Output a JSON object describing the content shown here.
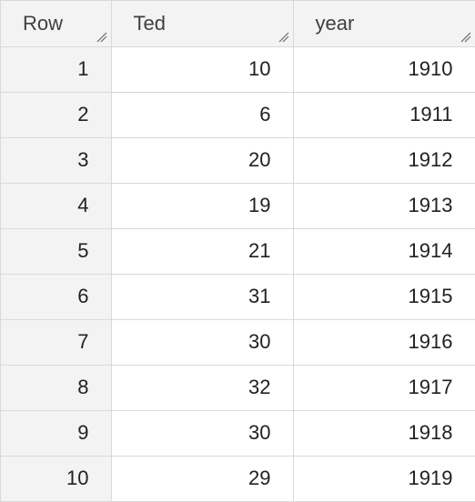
{
  "table": {
    "headers": {
      "row": "Row",
      "ted": "Ted",
      "year": "year"
    },
    "rows": [
      {
        "row": "1",
        "ted": "10",
        "year": "1910"
      },
      {
        "row": "2",
        "ted": "6",
        "year": "1911"
      },
      {
        "row": "3",
        "ted": "20",
        "year": "1912"
      },
      {
        "row": "4",
        "ted": "19",
        "year": "1913"
      },
      {
        "row": "5",
        "ted": "21",
        "year": "1914"
      },
      {
        "row": "6",
        "ted": "31",
        "year": "1915"
      },
      {
        "row": "7",
        "ted": "30",
        "year": "1916"
      },
      {
        "row": "8",
        "ted": "32",
        "year": "1917"
      },
      {
        "row": "9",
        "ted": "30",
        "year": "1918"
      },
      {
        "row": "10",
        "ted": "29",
        "year": "1919"
      }
    ]
  },
  "colors": {
    "header_bg": "#f3f3f3",
    "grid_line": "#d9d9d9",
    "text": "#202124"
  },
  "icons": {
    "column_resize": "resize-handle-icon"
  }
}
